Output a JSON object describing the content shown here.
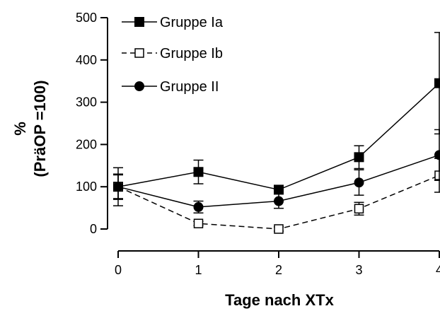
{
  "chart_data": {
    "type": "line",
    "title": "",
    "xlabel": "Tage nach XTx",
    "ylabel_line1": "%",
    "ylabel_line2": "(PräOP =100)",
    "x": [
      0,
      1,
      2,
      3,
      4
    ],
    "x_tick_labels": [
      "0",
      "1",
      "2",
      "3",
      "4"
    ],
    "ylim": [
      0,
      500
    ],
    "xlim": [
      0,
      4
    ],
    "y_ticks": [
      0,
      100,
      200,
      300,
      400,
      500
    ],
    "y_tick_labels": [
      "0",
      "100",
      "200",
      "300",
      "400",
      "500"
    ],
    "grid": false,
    "legend_position": "top-left",
    "series": [
      {
        "name": "Gruppe Ia",
        "marker": "filled-square",
        "line_style": "solid",
        "color": "#000000",
        "values": [
          100,
          135,
          93,
          170,
          345
        ],
        "error": [
          28,
          28,
          8,
          27,
          120
        ]
      },
      {
        "name": "Gruppe Ib",
        "marker": "open-square",
        "line_style": "dashed",
        "color": "#000000",
        "values": [
          100,
          13,
          0,
          48,
          127
        ],
        "error": [
          45,
          5,
          5,
          15,
          40
        ]
      },
      {
        "name": "Gruppe II",
        "marker": "filled-circle",
        "line_style": "solid",
        "color": "#000000",
        "values": [
          100,
          52,
          66,
          110,
          175
        ],
        "error": [
          30,
          14,
          17,
          30,
          60
        ]
      }
    ]
  }
}
